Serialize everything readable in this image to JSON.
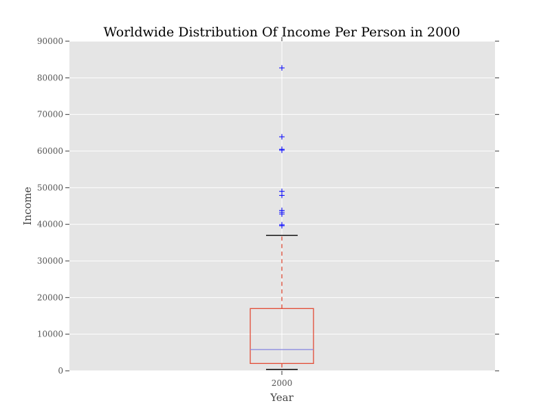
{
  "chart_data": {
    "type": "box",
    "title": "Worldwide Distribution Of Income Per Person in 2000",
    "xlabel": "Year",
    "ylabel": "Income",
    "categories": [
      "2000"
    ],
    "ylim": [
      0,
      90000
    ],
    "yticks": [
      0,
      10000,
      20000,
      30000,
      40000,
      50000,
      60000,
      70000,
      80000,
      90000
    ],
    "grid": true,
    "box": {
      "whisker_low": 350,
      "q1": 2000,
      "median": 5800,
      "q3": 17000,
      "whisker_high": 37000
    },
    "outliers": [
      39600,
      39900,
      42800,
      43300,
      43800,
      47900,
      49000,
      60200,
      60500,
      63900,
      82700
    ],
    "colors": {
      "background": "#e5e5e5",
      "grid": "#ffffff",
      "box": "#e24a33",
      "median": "#8c8ce0",
      "whisker": "#e24a33",
      "cap": "#000000",
      "outlier": "#0000ff"
    }
  }
}
